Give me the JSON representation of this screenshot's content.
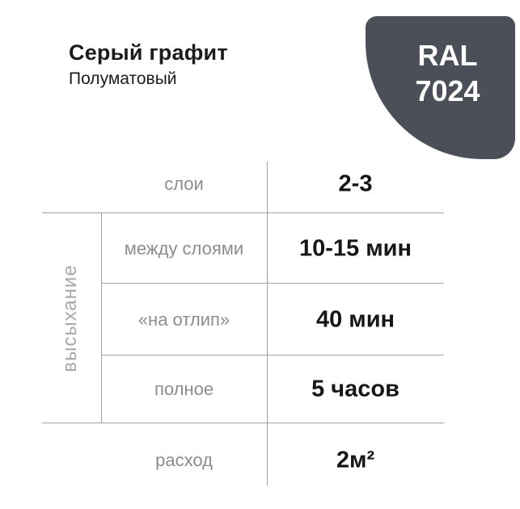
{
  "header": {
    "title": "Серый графит",
    "subtitle": "Полуматовый"
  },
  "badge": {
    "line1": "RAL",
    "line2": "7024",
    "color": "#4b4f58",
    "text_color": "#ffffff"
  },
  "table": {
    "group_label": "высыхание",
    "rows": [
      {
        "label": "слои",
        "value": "2-3"
      },
      {
        "label": "между слоями",
        "value": "10-15 мин"
      },
      {
        "label": "«на отлип»",
        "value": "40 мин"
      },
      {
        "label": "полное",
        "value": "5 часов"
      },
      {
        "label": "расход",
        "value": "2м²"
      }
    ]
  },
  "colors": {
    "badge": "#4b4f58",
    "rule_line": "#a2a2a2",
    "label_text": "#8c8c8c",
    "value_text": "#161616",
    "group_label_text": "#a9a9a9",
    "title_text": "#1c1c1c"
  }
}
